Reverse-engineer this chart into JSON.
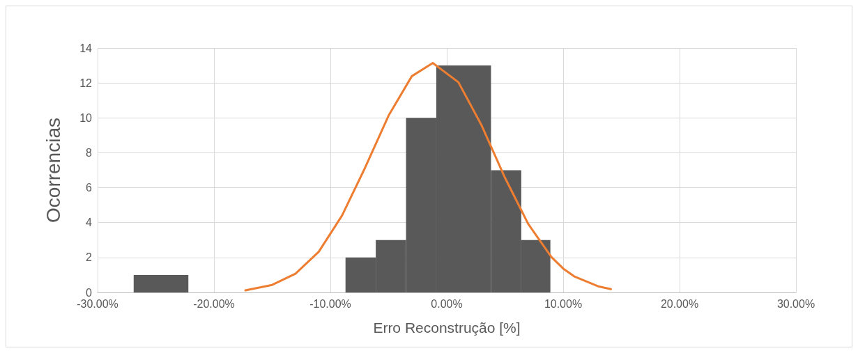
{
  "chart_data": {
    "type": "histogram",
    "xlabel": "Erro Reconstrução [%]",
    "ylabel": "Ocorrencias",
    "bins": [
      -26.9,
      -22.2,
      -8.7,
      -6.1,
      -3.5,
      -0.9,
      3.8,
      6.4,
      8.9
    ],
    "values": [
      1,
      0,
      2,
      3,
      10,
      13,
      7,
      3
    ],
    "color": "#595959",
    "series": [
      {
        "type": "line",
        "color": "#ed7d31",
        "x": [
          -17.3,
          -15,
          -13,
          -11,
          -9,
          -7,
          -5,
          -3,
          -1.2,
          1,
          3,
          5,
          7,
          9,
          10,
          11,
          13,
          14.1
        ],
        "values": [
          0.12,
          0.43,
          1.07,
          2.33,
          4.4,
          7.17,
          10.13,
          12.39,
          13.14,
          12.04,
          9.56,
          6.57,
          3.92,
          2.02,
          1.37,
          0.9,
          0.35,
          0.19
        ]
      }
    ],
    "xlim": [
      -30,
      30
    ],
    "xticks": [
      {
        "value": -30,
        "label": "-30.00%"
      },
      {
        "value": -20,
        "label": "-20.00%"
      },
      {
        "value": -10,
        "label": "-10.00%"
      },
      {
        "value": 0,
        "label": "0.00%"
      },
      {
        "value": 10,
        "label": "10.00%"
      },
      {
        "value": 20,
        "label": "20.00%"
      },
      {
        "value": 30,
        "label": "30.00%"
      }
    ],
    "ylim": [
      0,
      14
    ],
    "yticks": [
      0,
      2,
      4,
      6,
      8,
      10,
      12,
      14
    ],
    "grid": true,
    "marker": "none",
    "line_style": "solid"
  }
}
